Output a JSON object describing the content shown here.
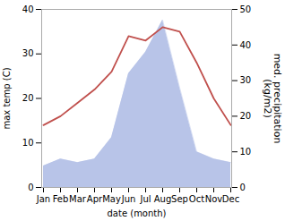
{
  "chart_data": {
    "type": "line",
    "categories": [
      "Jan",
      "Feb",
      "Mar",
      "Apr",
      "May",
      "Jun",
      "Jul",
      "Aug",
      "Sep",
      "Oct",
      "Nov",
      "Dec"
    ],
    "series": [
      {
        "type": "area",
        "axis": "y2",
        "color": "#b8c4e8",
        "values": [
          6,
          8,
          7,
          8,
          14,
          32,
          38,
          47,
          28,
          10,
          8,
          7
        ]
      },
      {
        "type": "line",
        "color": "#c0504d",
        "values": [
          14,
          16,
          19,
          22,
          26,
          34,
          33,
          36,
          35,
          28,
          20,
          14
        ]
      }
    ],
    "xlabel": "date (month)",
    "ylabel": "max temp (C)",
    "y2label": "med. precipitation\n(kg/m2)",
    "ylim": [
      0,
      40
    ],
    "yticks": [
      0,
      10,
      20,
      30,
      40
    ],
    "y2lim": [
      0,
      50
    ],
    "y2ticks": [
      0,
      10,
      20,
      30,
      40,
      50
    ],
    "grid": false
  }
}
